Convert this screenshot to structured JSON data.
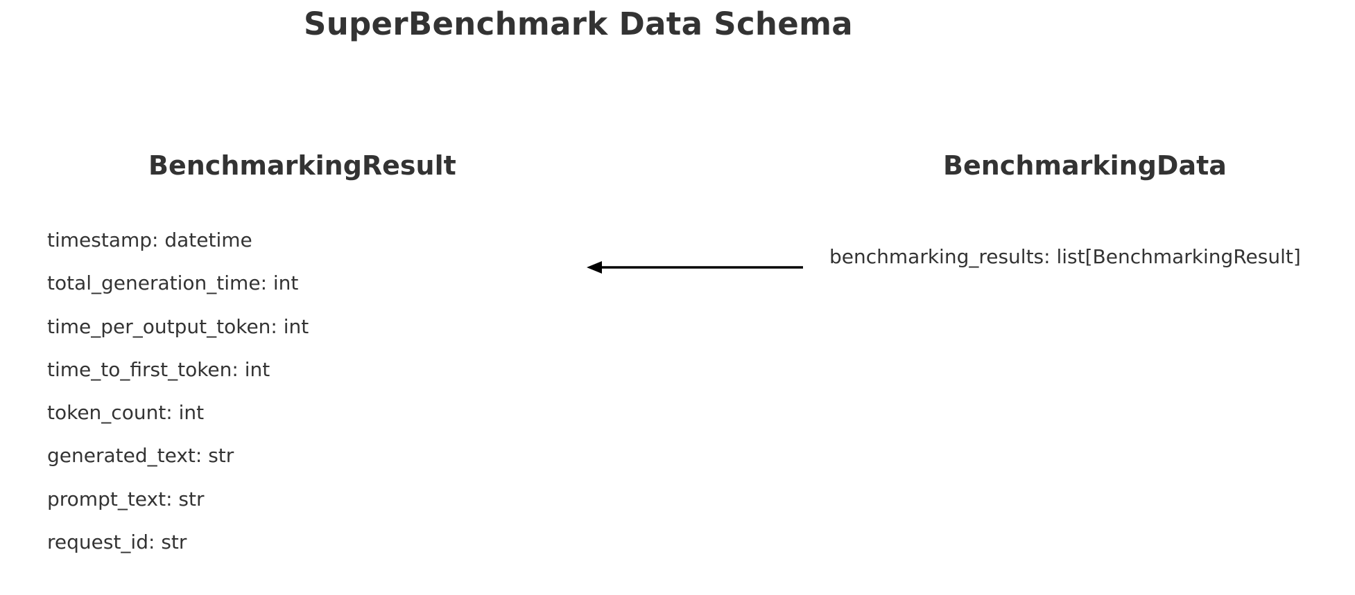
{
  "title": "SuperBenchmark Data Schema",
  "entities": {
    "result": {
      "name": "BenchmarkingResult",
      "fields": [
        "timestamp: datetime",
        "total_generation_time: int",
        "time_per_output_token: int",
        "time_to_first_token: int",
        "token_count: int",
        "generated_text: str",
        "prompt_text: str",
        "request_id: str"
      ]
    },
    "data": {
      "name": "BenchmarkingData",
      "fields": [
        "benchmarking_results: list[BenchmarkingResult]"
      ]
    }
  },
  "relation": {
    "from": "BenchmarkingData",
    "to": "BenchmarkingResult",
    "style": "arrow-left",
    "color": "#000000"
  }
}
